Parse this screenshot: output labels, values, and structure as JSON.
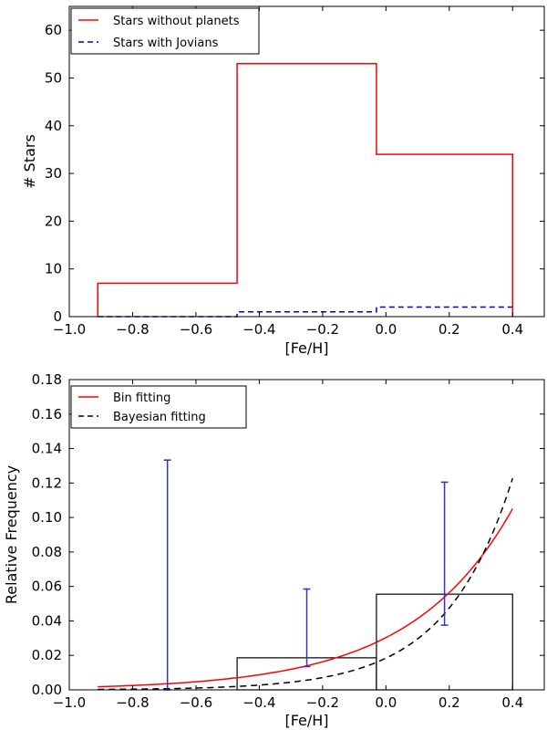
{
  "chart_data": [
    {
      "type": "line",
      "subtype": "step-histogram",
      "title": "",
      "xlabel": "[Fe/H]",
      "ylabel": "# Stars",
      "xlim": [
        -1.0,
        0.5
      ],
      "ylim": [
        0,
        65
      ],
      "xticks": [
        -1.0,
        -0.8,
        -0.6,
        -0.4,
        -0.2,
        0.0,
        0.2,
        0.4
      ],
      "xtick_labels": [
        "−1.0",
        "−0.8",
        "−0.6",
        "−0.4",
        "−0.2",
        "0.0",
        "0.2",
        "0.4"
      ],
      "yticks": [
        0,
        10,
        20,
        30,
        40,
        50,
        60
      ],
      "ytick_labels": [
        "0",
        "10",
        "20",
        "30",
        "40",
        "50",
        "60"
      ],
      "legend_position": "top-left",
      "series": [
        {
          "name": "Stars without planets",
          "color": "#ff0000",
          "style": "solid",
          "bin_edges": [
            -0.91,
            -0.47,
            -0.03,
            0.4
          ],
          "counts": [
            7,
            53,
            34
          ]
        },
        {
          "name": "Stars with Jovians",
          "color": "#0000cc",
          "style": "dashed",
          "bin_edges": [
            -0.91,
            -0.47,
            -0.03,
            0.4
          ],
          "counts": [
            0,
            1,
            2
          ]
        }
      ]
    },
    {
      "type": "line",
      "subtype": "histogram-with-fits",
      "title": "",
      "xlabel": "[Fe/H]",
      "ylabel": "Relative Frequency",
      "xlim": [
        -1.0,
        0.5
      ],
      "ylim": [
        0,
        0.18
      ],
      "xticks": [
        -1.0,
        -0.8,
        -0.6,
        -0.4,
        -0.2,
        0.0,
        0.2,
        0.4
      ],
      "xtick_labels": [
        "−1.0",
        "−0.8",
        "−0.6",
        "−0.4",
        "−0.2",
        "0.0",
        "0.2",
        "0.4"
      ],
      "yticks": [
        0.0,
        0.02,
        0.04,
        0.06,
        0.08,
        0.1,
        0.12,
        0.14,
        0.16,
        0.18
      ],
      "ytick_labels": [
        "0.00",
        "0.02",
        "0.04",
        "0.06",
        "0.08",
        "0.10",
        "0.12",
        "0.14",
        "0.16",
        "0.18"
      ],
      "legend_position": "top-left",
      "bars": {
        "bin_edges": [
          -0.91,
          -0.47,
          -0.03,
          0.4
        ],
        "values": [
          0.0,
          0.0186,
          0.0555
        ],
        "color": "#000000"
      },
      "error_bars": {
        "color": "#3333bb",
        "points": [
          {
            "x": -0.69,
            "low": 0.0,
            "high": 0.1333
          },
          {
            "x": -0.25,
            "low": 0.0135,
            "high": 0.0585
          },
          {
            "x": 0.185,
            "low": 0.0375,
            "high": 0.1205
          }
        ]
      },
      "series": [
        {
          "name": "Bin fitting",
          "color": "#ff0000",
          "style": "solid",
          "model": "a*10^(b*x)",
          "a": 0.0303,
          "b": 1.35,
          "x_range": [
            -0.91,
            0.4
          ]
        },
        {
          "name": "Bayesian fitting",
          "color": "#000000",
          "style": "dashed",
          "model": "a*10^(b*x)",
          "a": 0.0184,
          "b": 2.06,
          "x_range": [
            -0.91,
            0.4
          ]
        }
      ]
    }
  ]
}
